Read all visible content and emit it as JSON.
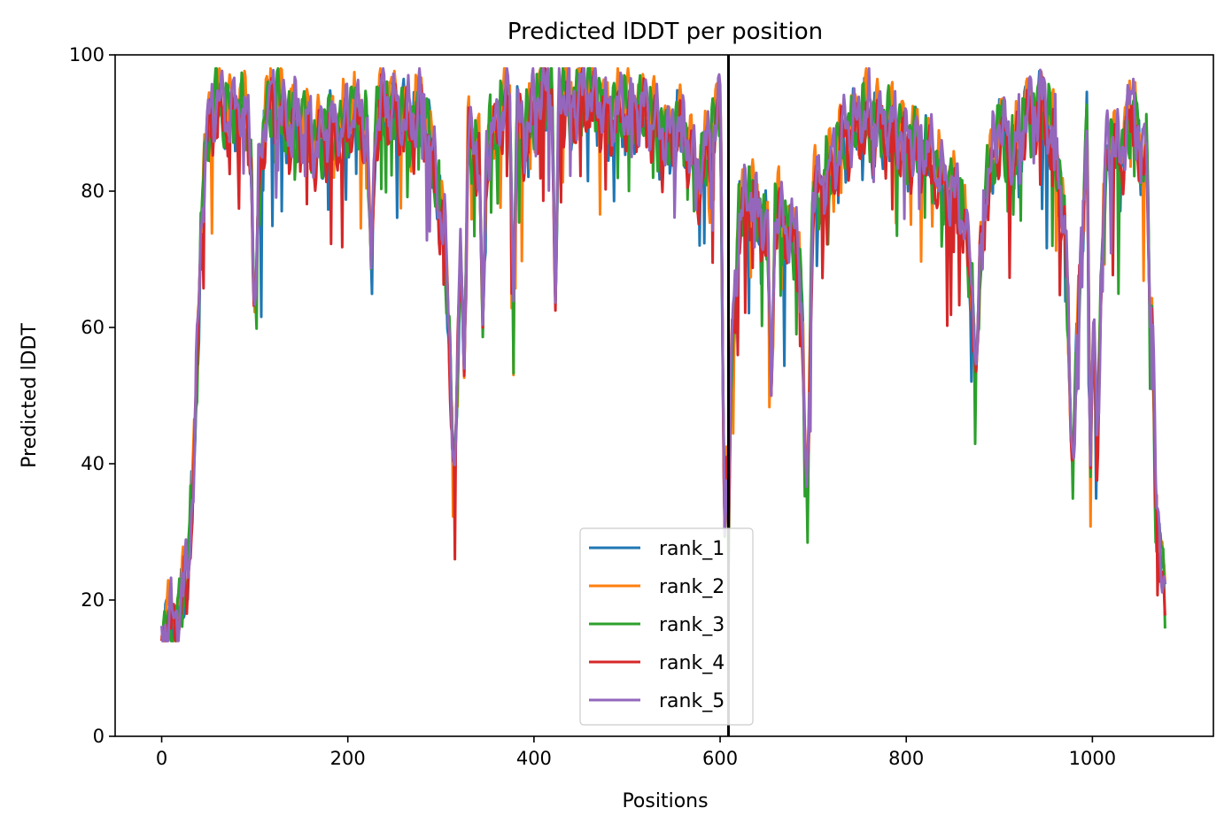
{
  "chart_data": {
    "type": "line",
    "title": "Predicted lDDT per position",
    "xlabel": "Positions",
    "ylabel": "Predicted lDDT",
    "xlim": [
      -50,
      1130
    ],
    "ylim": [
      0,
      100
    ],
    "xticks": [
      0,
      200,
      400,
      600,
      800,
      1000
    ],
    "yticks": [
      0,
      20,
      40,
      60,
      80,
      100
    ],
    "vline_x": 609,
    "legend_position": "lower-center",
    "grid": false,
    "colors": {
      "rank_1": "#1f77b4",
      "rank_2": "#ff7f0e",
      "rank_3": "#2ca02c",
      "rank_4": "#d62728",
      "rank_5": "#9467bd",
      "vline": "#000000"
    },
    "base_profile": {
      "x": [
        0,
        10,
        20,
        28,
        35,
        42,
        50,
        60,
        70,
        80,
        90,
        97,
        100,
        103,
        110,
        120,
        135,
        150,
        165,
        180,
        195,
        205,
        215,
        225,
        235,
        250,
        265,
        280,
        295,
        305,
        315,
        322,
        330,
        345,
        360,
        375,
        390,
        405,
        420,
        440,
        460,
        480,
        500,
        520,
        540,
        560,
        575,
        590,
        600,
        606,
        609,
        612,
        620,
        630,
        640,
        650,
        660,
        672,
        685,
        693,
        700,
        715,
        730,
        745,
        760,
        780,
        800,
        820,
        840,
        860,
        875,
        885,
        900,
        915,
        930,
        945,
        960,
        970,
        980,
        995,
        1005,
        1015,
        1030,
        1045,
        1052,
        1060,
        1068,
        1072,
        1078
      ],
      "y": [
        16,
        17,
        19,
        25,
        40,
        75,
        90,
        93,
        92,
        93,
        91,
        85,
        64,
        78,
        91,
        94,
        90,
        91,
        87,
        90,
        89,
        92,
        91,
        85,
        94,
        92,
        90,
        93,
        82,
        72,
        42,
        75,
        88,
        85,
        90,
        94,
        88,
        94,
        96,
        93,
        95,
        91,
        93,
        92,
        88,
        90,
        82,
        88,
        93,
        60,
        30,
        55,
        75,
        80,
        78,
        74,
        77,
        75,
        72,
        40,
        80,
        82,
        88,
        90,
        91,
        90,
        88,
        86,
        82,
        78,
        62,
        80,
        90,
        85,
        92,
        93,
        88,
        75,
        45,
        94,
        45,
        88,
        85,
        95,
        82,
        92,
        35,
        30,
        20
      ]
    },
    "dips": [
      {
        "x": 100,
        "y": 63
      },
      {
        "x": 225,
        "y": 70
      },
      {
        "x": 314,
        "y": 40
      },
      {
        "x": 325,
        "y": 53
      },
      {
        "x": 345,
        "y": 60
      },
      {
        "x": 378,
        "y": 63
      },
      {
        "x": 423,
        "y": 63
      },
      {
        "x": 605,
        "y": 30
      },
      {
        "x": 655,
        "y": 50
      },
      {
        "x": 693,
        "y": 38
      },
      {
        "x": 875,
        "y": 53
      },
      {
        "x": 978,
        "y": 42
      },
      {
        "x": 998,
        "y": 39
      },
      {
        "x": 1062,
        "y": 60
      }
    ],
    "series": [
      {
        "name": "rank_1",
        "offset": -1.0,
        "seed": 11
      },
      {
        "name": "rank_2",
        "offset": 0.8,
        "seed": 23
      },
      {
        "name": "rank_3",
        "offset": -0.5,
        "seed": 37
      },
      {
        "name": "rank_4",
        "offset": -1.8,
        "seed": 41
      },
      {
        "name": "rank_5",
        "offset": 0.2,
        "seed": 53
      }
    ]
  }
}
